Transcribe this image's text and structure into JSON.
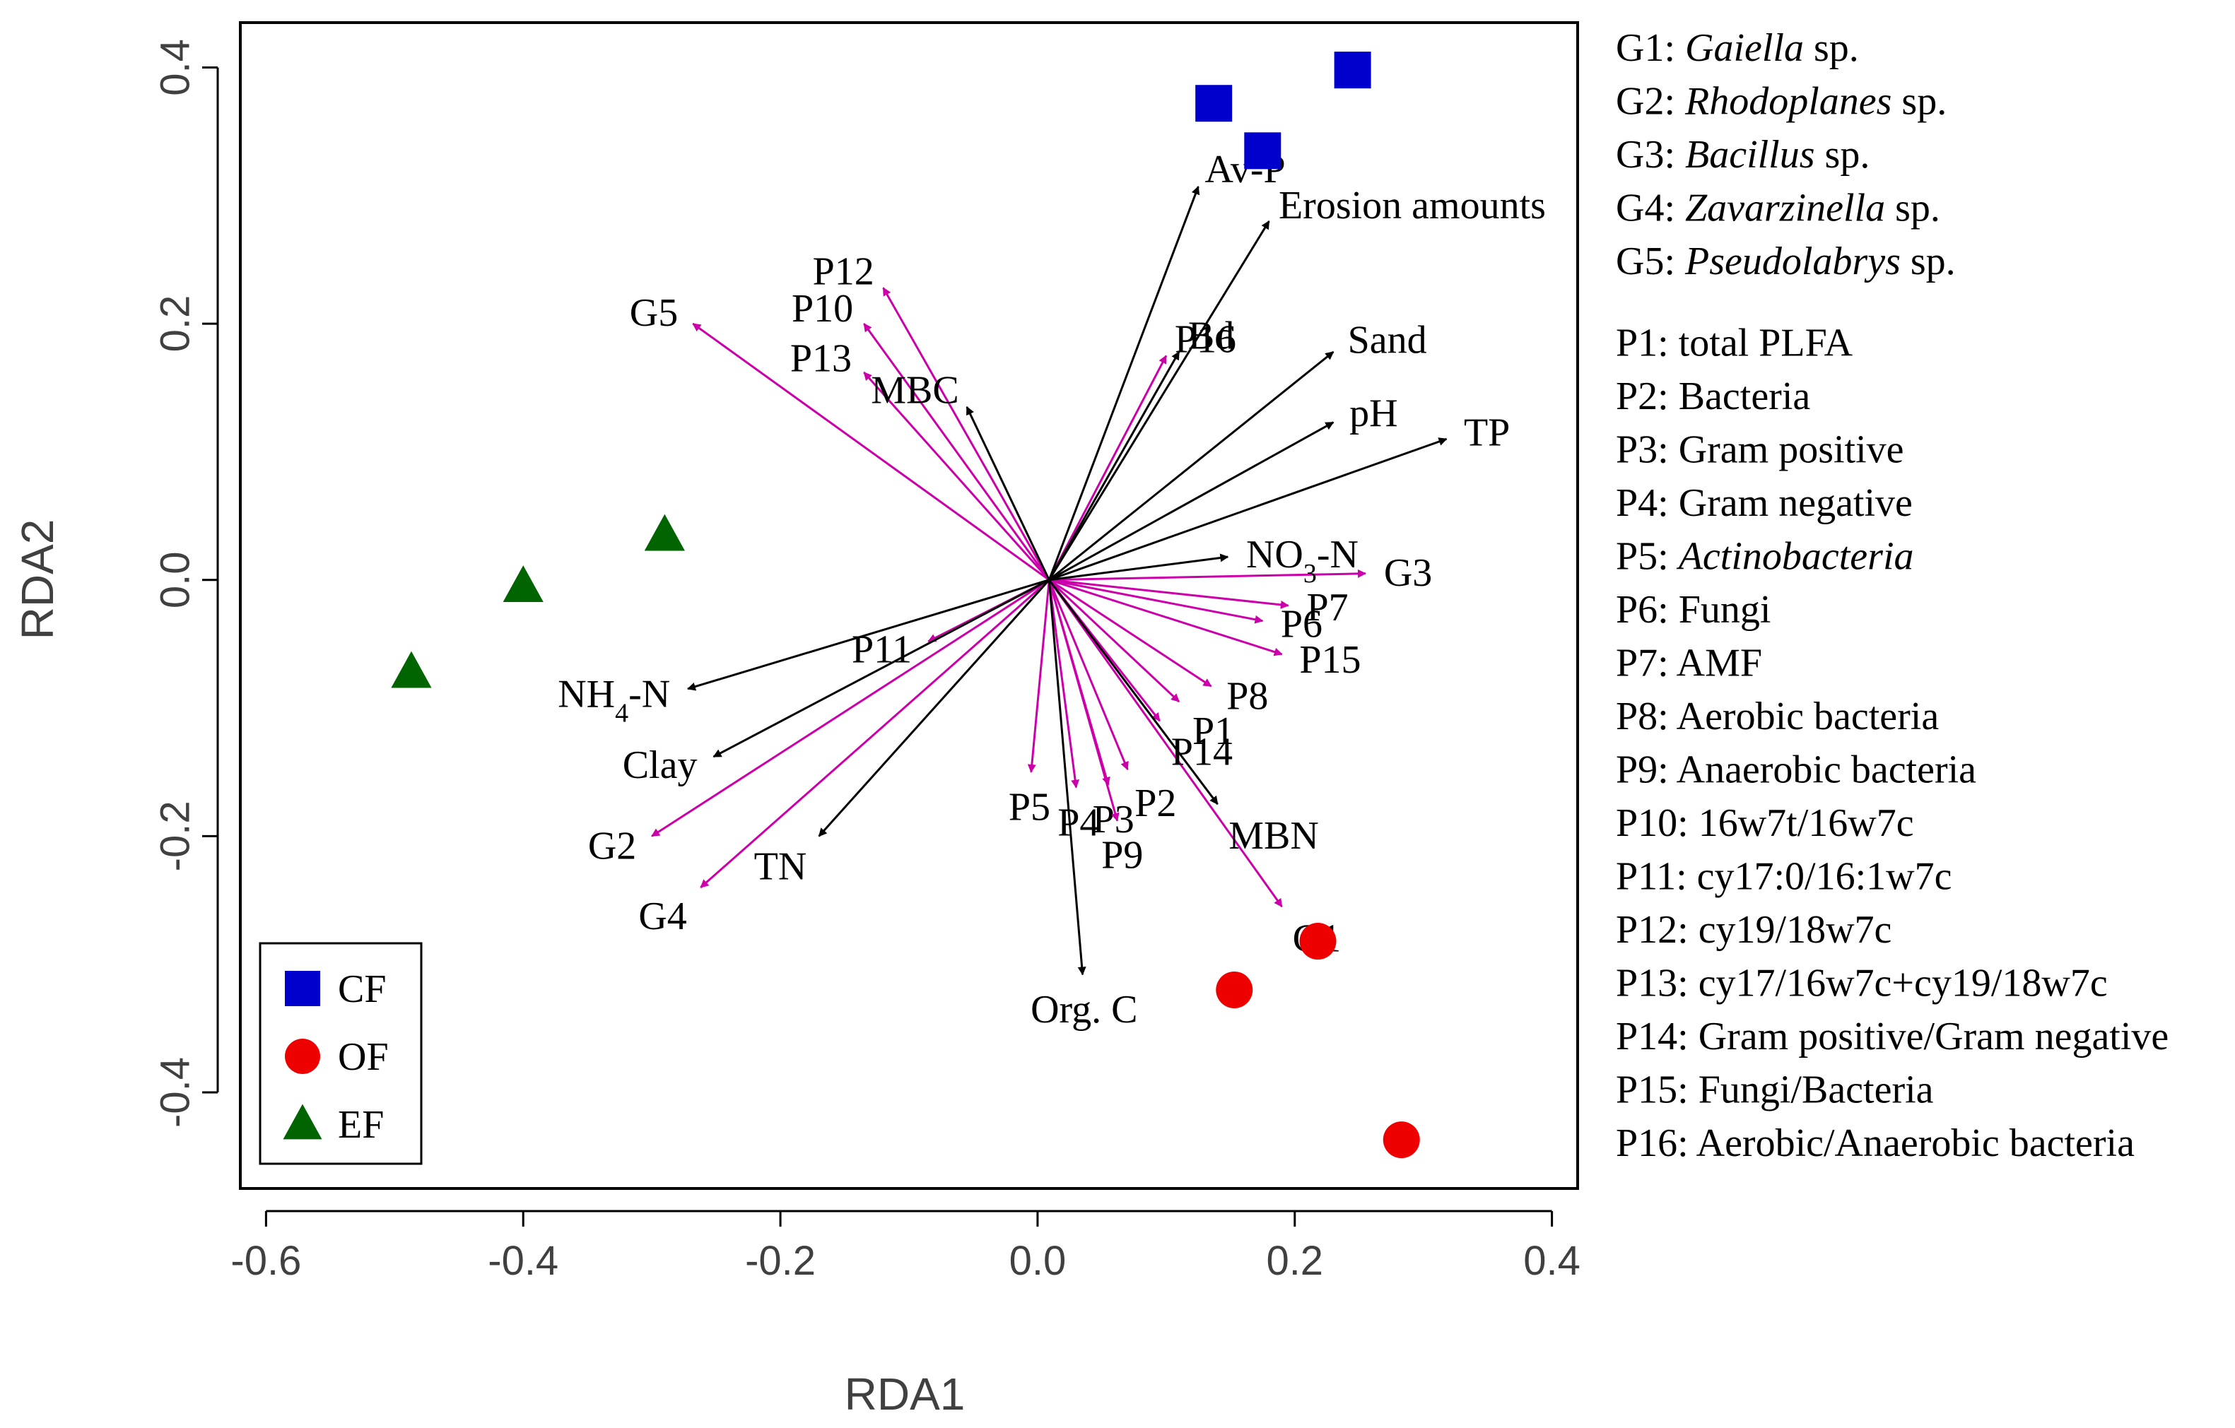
{
  "chart_data": {
    "type": "scatter",
    "subtype": "RDA biplot",
    "xlabel": "RDA1",
    "ylabel": "RDA2",
    "xlim": [
      -0.62,
      0.42
    ],
    "ylim": [
      -0.475,
      0.435
    ],
    "xticks": [
      -0.6,
      -0.4,
      -0.2,
      0.0,
      0.2,
      0.4
    ],
    "xtick_labels": [
      "-0.6",
      "-0.4",
      "-0.2",
      "0.0",
      "0.2",
      "0.4"
    ],
    "yticks": [
      -0.4,
      -0.2,
      0.0,
      0.2,
      0.4
    ],
    "ytick_labels": [
      "-0.4",
      "-0.2",
      "0.0",
      "0.2",
      "0.4"
    ],
    "origin": [
      0.009,
      0.0
    ],
    "series": [
      {
        "name": "CF",
        "marker": "square",
        "color": "#0000cc",
        "points": [
          [
            0.137,
            0.372
          ],
          [
            0.175,
            0.335
          ],
          [
            0.245,
            0.398
          ]
        ]
      },
      {
        "name": "OF",
        "marker": "circle",
        "color": "#ee0000",
        "points": [
          [
            0.218,
            -0.282
          ],
          [
            0.153,
            -0.32
          ],
          [
            0.283,
            -0.437
          ]
        ]
      },
      {
        "name": "EF",
        "marker": "triangle",
        "color": "#006400",
        "points": [
          [
            -0.29,
            0.035
          ],
          [
            -0.4,
            -0.005
          ],
          [
            -0.487,
            -0.072
          ]
        ]
      }
    ],
    "env_vectors": [
      {
        "name": "Av-P",
        "end": [
          0.125,
          0.307
        ],
        "label": "Av-P"
      },
      {
        "name": "Erosion amounts",
        "end": [
          0.18,
          0.28
        ],
        "label": "Erosion amounts"
      },
      {
        "name": "Bd",
        "end": [
          0.11,
          0.178
        ],
        "label": "Bd"
      },
      {
        "name": "Sand",
        "end": [
          0.23,
          0.178
        ],
        "label": "Sand"
      },
      {
        "name": "pH",
        "end": [
          0.23,
          0.123
        ],
        "label": "pH"
      },
      {
        "name": "TP",
        "end": [
          0.318,
          0.11
        ],
        "label": "TP"
      },
      {
        "name": "NO3-N",
        "end": [
          0.148,
          0.018
        ],
        "label": "NO",
        "label_sub": "3",
        "label_suffix": "-N"
      },
      {
        "name": "MBC",
        "end": [
          -0.055,
          0.135
        ],
        "label": "MBC"
      },
      {
        "name": "NH4-N",
        "end": [
          -0.272,
          -0.085
        ],
        "label": "NH",
        "label_sub": "4",
        "label_suffix": "-N"
      },
      {
        "name": "Clay",
        "end": [
          -0.252,
          -0.138
        ],
        "label": "Clay"
      },
      {
        "name": "TN",
        "end": [
          -0.17,
          -0.2
        ],
        "label": "TN"
      },
      {
        "name": "Org. C",
        "end": [
          0.035,
          -0.308
        ],
        "label": "Org. C"
      },
      {
        "name": "MBN",
        "end": [
          0.14,
          -0.175
        ],
        "label": "MBN"
      }
    ],
    "bio_vectors": [
      {
        "name": "G1",
        "end": [
          0.19,
          -0.255
        ],
        "label": "G1"
      },
      {
        "name": "G2",
        "end": [
          -0.3,
          -0.2
        ],
        "label": "G2"
      },
      {
        "name": "G3",
        "end": [
          0.255,
          0.005
        ],
        "label": "G3"
      },
      {
        "name": "G4",
        "end": [
          -0.262,
          -0.24
        ],
        "label": "G4"
      },
      {
        "name": "G5",
        "end": [
          -0.268,
          0.2
        ],
        "label": "G5"
      },
      {
        "name": "P1",
        "end": [
          0.11,
          -0.095
        ],
        "label": "P1"
      },
      {
        "name": "P2",
        "end": [
          0.07,
          -0.148
        ],
        "label": "P2"
      },
      {
        "name": "P3",
        "end": [
          0.055,
          -0.16
        ],
        "label": "P3"
      },
      {
        "name": "P4",
        "end": [
          0.03,
          -0.162
        ],
        "label": "P4"
      },
      {
        "name": "P5",
        "end": [
          -0.005,
          -0.15
        ],
        "label": "P5"
      },
      {
        "name": "P6",
        "end": [
          0.175,
          -0.032
        ],
        "label": "P6"
      },
      {
        "name": "P7",
        "end": [
          0.195,
          -0.02
        ],
        "label": "P7"
      },
      {
        "name": "P8",
        "end": [
          0.135,
          -0.083
        ],
        "label": "P8"
      },
      {
        "name": "P9",
        "end": [
          0.062,
          -0.188
        ],
        "label": "P9"
      },
      {
        "name": "P10",
        "end": [
          -0.135,
          0.2
        ],
        "label": "P10"
      },
      {
        "name": "P11",
        "end": [
          -0.085,
          -0.048
        ],
        "label": "P11"
      },
      {
        "name": "P12",
        "end": [
          -0.12,
          0.228
        ],
        "label": "P12"
      },
      {
        "name": "P13",
        "end": [
          -0.135,
          0.162
        ],
        "label": "P13"
      },
      {
        "name": "P14",
        "end": [
          0.095,
          -0.11
        ],
        "label": "P14"
      },
      {
        "name": "P15",
        "end": [
          0.19,
          -0.058
        ],
        "label": "P15"
      },
      {
        "name": "P16",
        "end": [
          0.1,
          0.175
        ],
        "label": "P16"
      }
    ],
    "legend": {
      "placement": "bottom-left",
      "entries": [
        {
          "label": "CF",
          "marker": "square",
          "color": "#0000cc"
        },
        {
          "label": "OF",
          "marker": "circle",
          "color": "#ee0000"
        },
        {
          "label": "EF",
          "marker": "triangle",
          "color": "#006400"
        }
      ]
    },
    "arrow_colors": {
      "environment": "#000000",
      "biological": "#cc00aa"
    },
    "key": [
      {
        "code": "G1:",
        "desc": "Gaiella",
        "italic": true,
        "suffix": "sp."
      },
      {
        "code": "G2:",
        "desc": "Rhodoplanes",
        "italic": true,
        "suffix": "sp."
      },
      {
        "code": "G3:",
        "desc": "Bacillus",
        "italic": true,
        "suffix": "sp."
      },
      {
        "code": "G4:",
        "desc": "Zavarzinella",
        "italic": true,
        "suffix": "sp."
      },
      {
        "code": "G5:",
        "desc": "Pseudolabrys",
        "italic": true,
        "suffix": "sp."
      },
      {
        "code": "P1:",
        "desc": "total PLFA",
        "italic": false
      },
      {
        "code": "P2:",
        "desc": "Bacteria",
        "italic": false
      },
      {
        "code": "P3:",
        "desc": "Gram positive",
        "italic": false
      },
      {
        "code": "P4:",
        "desc": "Gram negative",
        "italic": false
      },
      {
        "code": "P5:",
        "desc": "Actinobacteria",
        "italic": true
      },
      {
        "code": "P6:",
        "desc": "Fungi",
        "italic": false
      },
      {
        "code": "P7:",
        "desc": "AMF",
        "italic": false
      },
      {
        "code": "P8:",
        "desc": "Aerobic bacteria",
        "italic": false
      },
      {
        "code": "P9:",
        "desc": "Anaerobic bacteria",
        "italic": false
      },
      {
        "code": "P10:",
        "desc": "16w7t/16w7c",
        "italic": false
      },
      {
        "code": "P11:",
        "desc": "cy17:0/16:1w7c",
        "italic": false
      },
      {
        "code": "P12:",
        "desc": "cy19/18w7c",
        "italic": false
      },
      {
        "code": "P13:",
        "desc": "cy17/16w7c+cy19/18w7c",
        "italic": false
      },
      {
        "code": "P14:",
        "desc": "Gram positive/Gram negative",
        "italic": false
      },
      {
        "code": "P15:",
        "desc": "Fungi/Bacteria",
        "italic": false
      },
      {
        "code": "P16:",
        "desc": "Aerobic/Anaerobic bacteria",
        "italic": false
      }
    ]
  }
}
